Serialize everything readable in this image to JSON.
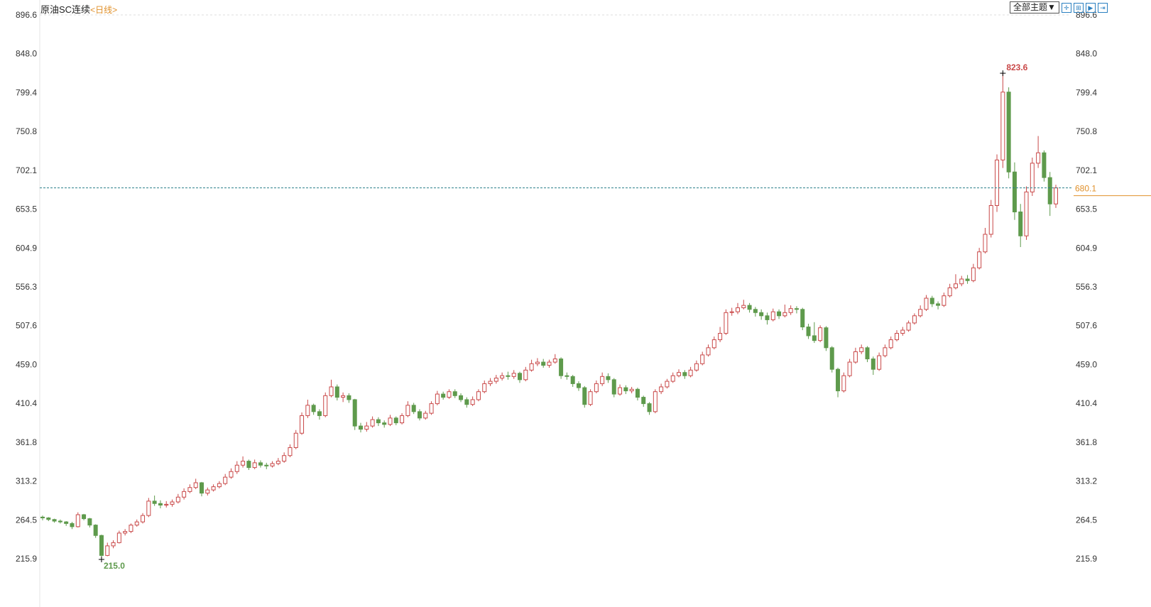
{
  "header": {
    "instrument": "原油SC连续",
    "period": "<日线>",
    "theme_button": "全部主题▼",
    "tools": [
      {
        "icon": "crosshair-icon",
        "glyph": "✛"
      },
      {
        "icon": "zoom-range-icon",
        "glyph": "⊞"
      },
      {
        "icon": "play-icon",
        "glyph": "▶"
      },
      {
        "icon": "jump-end-icon",
        "glyph": "⇥"
      }
    ]
  },
  "colors": {
    "up": "#c94848",
    "down": "#5e9a4c",
    "last_price": "#e0902a",
    "last_line": "#2a7f8a"
  },
  "chart_data": {
    "type": "candlestick",
    "title": "原油SC连续",
    "ylim": [
      215.9,
      896.6
    ],
    "y_ticks": [
      "896.6",
      "848.0",
      "799.4",
      "750.8",
      "702.1",
      "653.5",
      "604.9",
      "556.3",
      "507.6",
      "459.0",
      "410.4",
      "361.8",
      "313.2",
      "264.5",
      "215.9"
    ],
    "grid": false,
    "last_price": "680.1",
    "max_label": "823.6",
    "min_label": "215.0",
    "ohlc": [
      [
        268,
        270,
        264,
        267
      ],
      [
        267,
        268,
        263,
        265
      ],
      [
        265,
        266,
        261,
        263
      ],
      [
        263,
        265,
        260,
        262
      ],
      [
        262,
        263,
        257,
        260
      ],
      [
        260,
        262,
        253,
        256
      ],
      [
        256,
        274,
        255,
        271
      ],
      [
        271,
        272,
        264,
        266
      ],
      [
        266,
        267,
        255,
        258
      ],
      [
        258,
        259,
        242,
        245
      ],
      [
        245,
        246,
        215.0,
        220
      ],
      [
        220,
        236,
        219,
        232
      ],
      [
        232,
        239,
        229,
        236
      ],
      [
        236,
        251,
        235,
        248
      ],
      [
        248,
        253,
        245,
        250
      ],
      [
        250,
        260,
        248,
        258
      ],
      [
        258,
        265,
        256,
        262
      ],
      [
        262,
        273,
        260,
        270
      ],
      [
        270,
        292,
        268,
        288
      ],
      [
        288,
        295,
        282,
        285
      ],
      [
        285,
        289,
        279,
        283
      ],
      [
        283,
        288,
        280,
        284
      ],
      [
        284,
        290,
        281,
        287
      ],
      [
        287,
        297,
        285,
        293
      ],
      [
        293,
        304,
        290,
        300
      ],
      [
        300,
        309,
        298,
        305
      ],
      [
        305,
        316,
        303,
        311
      ],
      [
        311,
        312,
        294,
        298
      ],
      [
        298,
        305,
        295,
        302
      ],
      [
        302,
        309,
        300,
        306
      ],
      [
        306,
        313,
        304,
        310
      ],
      [
        310,
        322,
        308,
        318
      ],
      [
        318,
        329,
        316,
        325
      ],
      [
        325,
        338,
        322,
        333
      ],
      [
        333,
        344,
        330,
        338
      ],
      [
        338,
        340,
        327,
        330
      ],
      [
        330,
        340,
        328,
        336
      ],
      [
        336,
        339,
        330,
        333
      ],
      [
        333,
        336,
        328,
        332
      ],
      [
        332,
        338,
        330,
        335
      ],
      [
        335,
        342,
        333,
        338
      ],
      [
        338,
        349,
        336,
        345
      ],
      [
        345,
        359,
        343,
        355
      ],
      [
        355,
        377,
        353,
        373
      ],
      [
        373,
        399,
        371,
        395
      ],
      [
        395,
        415,
        392,
        408
      ],
      [
        408,
        410,
        396,
        400
      ],
      [
        400,
        403,
        390,
        395
      ],
      [
        395,
        424,
        393,
        420
      ],
      [
        420,
        440,
        418,
        431
      ],
      [
        431,
        434,
        414,
        418
      ],
      [
        418,
        424,
        412,
        420
      ],
      [
        420,
        423,
        411,
        415
      ],
      [
        415,
        416,
        377,
        382
      ],
      [
        382,
        386,
        374,
        378
      ],
      [
        378,
        387,
        375,
        382
      ],
      [
        382,
        394,
        380,
        390
      ],
      [
        390,
        393,
        382,
        386
      ],
      [
        386,
        389,
        380,
        384
      ],
      [
        384,
        396,
        382,
        392
      ],
      [
        392,
        394,
        383,
        386
      ],
      [
        386,
        398,
        384,
        395
      ],
      [
        395,
        413,
        393,
        408
      ],
      [
        408,
        411,
        397,
        400
      ],
      [
        400,
        403,
        389,
        392
      ],
      [
        392,
        401,
        390,
        398
      ],
      [
        398,
        413,
        396,
        410
      ],
      [
        410,
        426,
        408,
        422
      ],
      [
        422,
        425,
        415,
        418
      ],
      [
        418,
        428,
        416,
        425
      ],
      [
        425,
        428,
        417,
        420
      ],
      [
        420,
        423,
        412,
        415
      ],
      [
        415,
        418,
        405,
        409
      ],
      [
        409,
        419,
        407,
        415
      ],
      [
        415,
        428,
        413,
        425
      ],
      [
        425,
        439,
        423,
        435
      ],
      [
        435,
        442,
        432,
        438
      ],
      [
        438,
        446,
        435,
        442
      ],
      [
        442,
        449,
        439,
        445
      ],
      [
        445,
        450,
        440,
        444
      ],
      [
        444,
        452,
        441,
        448
      ],
      [
        448,
        450,
        436,
        440
      ],
      [
        440,
        456,
        438,
        452
      ],
      [
        452,
        465,
        450,
        460
      ],
      [
        460,
        467,
        457,
        462
      ],
      [
        462,
        466,
        455,
        458
      ],
      [
        458,
        465,
        455,
        462
      ],
      [
        462,
        472,
        460,
        466
      ],
      [
        466,
        468,
        441,
        445
      ],
      [
        445,
        449,
        440,
        444
      ],
      [
        444,
        446,
        431,
        435
      ],
      [
        435,
        438,
        426,
        430
      ],
      [
        430,
        432,
        405,
        409
      ],
      [
        409,
        428,
        407,
        425
      ],
      [
        425,
        439,
        423,
        435
      ],
      [
        435,
        449,
        432,
        444
      ],
      [
        444,
        448,
        436,
        440
      ],
      [
        440,
        442,
        418,
        422
      ],
      [
        422,
        434,
        420,
        430
      ],
      [
        430,
        433,
        422,
        426
      ],
      [
        426,
        431,
        423,
        428
      ],
      [
        428,
        430,
        414,
        418
      ],
      [
        418,
        420,
        406,
        410
      ],
      [
        410,
        412,
        396,
        400
      ],
      [
        400,
        428,
        398,
        425
      ],
      [
        425,
        435,
        422,
        431
      ],
      [
        431,
        441,
        429,
        438
      ],
      [
        438,
        449,
        436,
        445
      ],
      [
        445,
        453,
        443,
        449
      ],
      [
        449,
        452,
        441,
        445
      ],
      [
        445,
        456,
        443,
        452
      ],
      [
        452,
        464,
        450,
        460
      ],
      [
        460,
        475,
        458,
        471
      ],
      [
        471,
        484,
        469,
        480
      ],
      [
        480,
        494,
        478,
        490
      ],
      [
        490,
        506,
        487,
        498
      ],
      [
        498,
        528,
        496,
        524
      ],
      [
        524,
        530,
        520,
        525
      ],
      [
        525,
        536,
        522,
        530
      ],
      [
        530,
        540,
        528,
        533
      ],
      [
        533,
        536,
        524,
        528
      ],
      [
        528,
        531,
        519,
        524
      ],
      [
        524,
        528,
        515,
        520
      ],
      [
        520,
        524,
        509,
        515
      ],
      [
        515,
        529,
        513,
        525
      ],
      [
        525,
        528,
        516,
        520
      ],
      [
        520,
        534,
        518,
        524
      ],
      [
        524,
        533,
        521,
        529
      ],
      [
        529,
        532,
        523,
        528
      ],
      [
        528,
        530,
        502,
        506
      ],
      [
        506,
        510,
        491,
        495
      ],
      [
        495,
        512,
        486,
        489
      ],
      [
        489,
        508,
        487,
        505
      ],
      [
        505,
        507,
        476,
        480
      ],
      [
        480,
        482,
        449,
        453
      ],
      [
        453,
        455,
        418,
        426
      ],
      [
        426,
        449,
        424,
        445
      ],
      [
        445,
        466,
        443,
        462
      ],
      [
        462,
        480,
        460,
        475
      ],
      [
        475,
        484,
        472,
        480
      ],
      [
        480,
        482,
        462,
        466
      ],
      [
        466,
        469,
        446,
        453
      ],
      [
        453,
        474,
        451,
        470
      ],
      [
        470,
        484,
        468,
        480
      ],
      [
        480,
        494,
        478,
        490
      ],
      [
        490,
        502,
        488,
        498
      ],
      [
        498,
        506,
        495,
        502
      ],
      [
        502,
        514,
        500,
        511
      ],
      [
        511,
        523,
        509,
        520
      ],
      [
        520,
        533,
        518,
        528
      ],
      [
        528,
        546,
        526,
        542
      ],
      [
        542,
        545,
        531,
        535
      ],
      [
        535,
        538,
        528,
        533
      ],
      [
        533,
        549,
        531,
        545
      ],
      [
        545,
        560,
        543,
        555
      ],
      [
        555,
        572,
        553,
        560
      ],
      [
        560,
        570,
        557,
        566
      ],
      [
        566,
        571,
        560,
        564
      ],
      [
        564,
        585,
        562,
        580
      ],
      [
        580,
        605,
        578,
        600
      ],
      [
        600,
        630,
        598,
        622
      ],
      [
        622,
        665,
        618,
        658
      ],
      [
        658,
        722,
        650,
        715
      ],
      [
        715,
        823.6,
        705,
        800
      ],
      [
        800,
        806,
        692,
        700
      ],
      [
        700,
        712,
        640,
        650
      ],
      [
        650,
        660,
        606,
        620
      ],
      [
        620,
        682,
        615,
        675
      ],
      [
        675,
        718,
        670,
        711
      ],
      [
        711,
        745,
        705,
        724
      ],
      [
        724,
        727,
        688,
        693
      ],
      [
        693,
        700,
        645,
        660
      ],
      [
        660,
        684,
        655,
        680.1
      ]
    ]
  }
}
